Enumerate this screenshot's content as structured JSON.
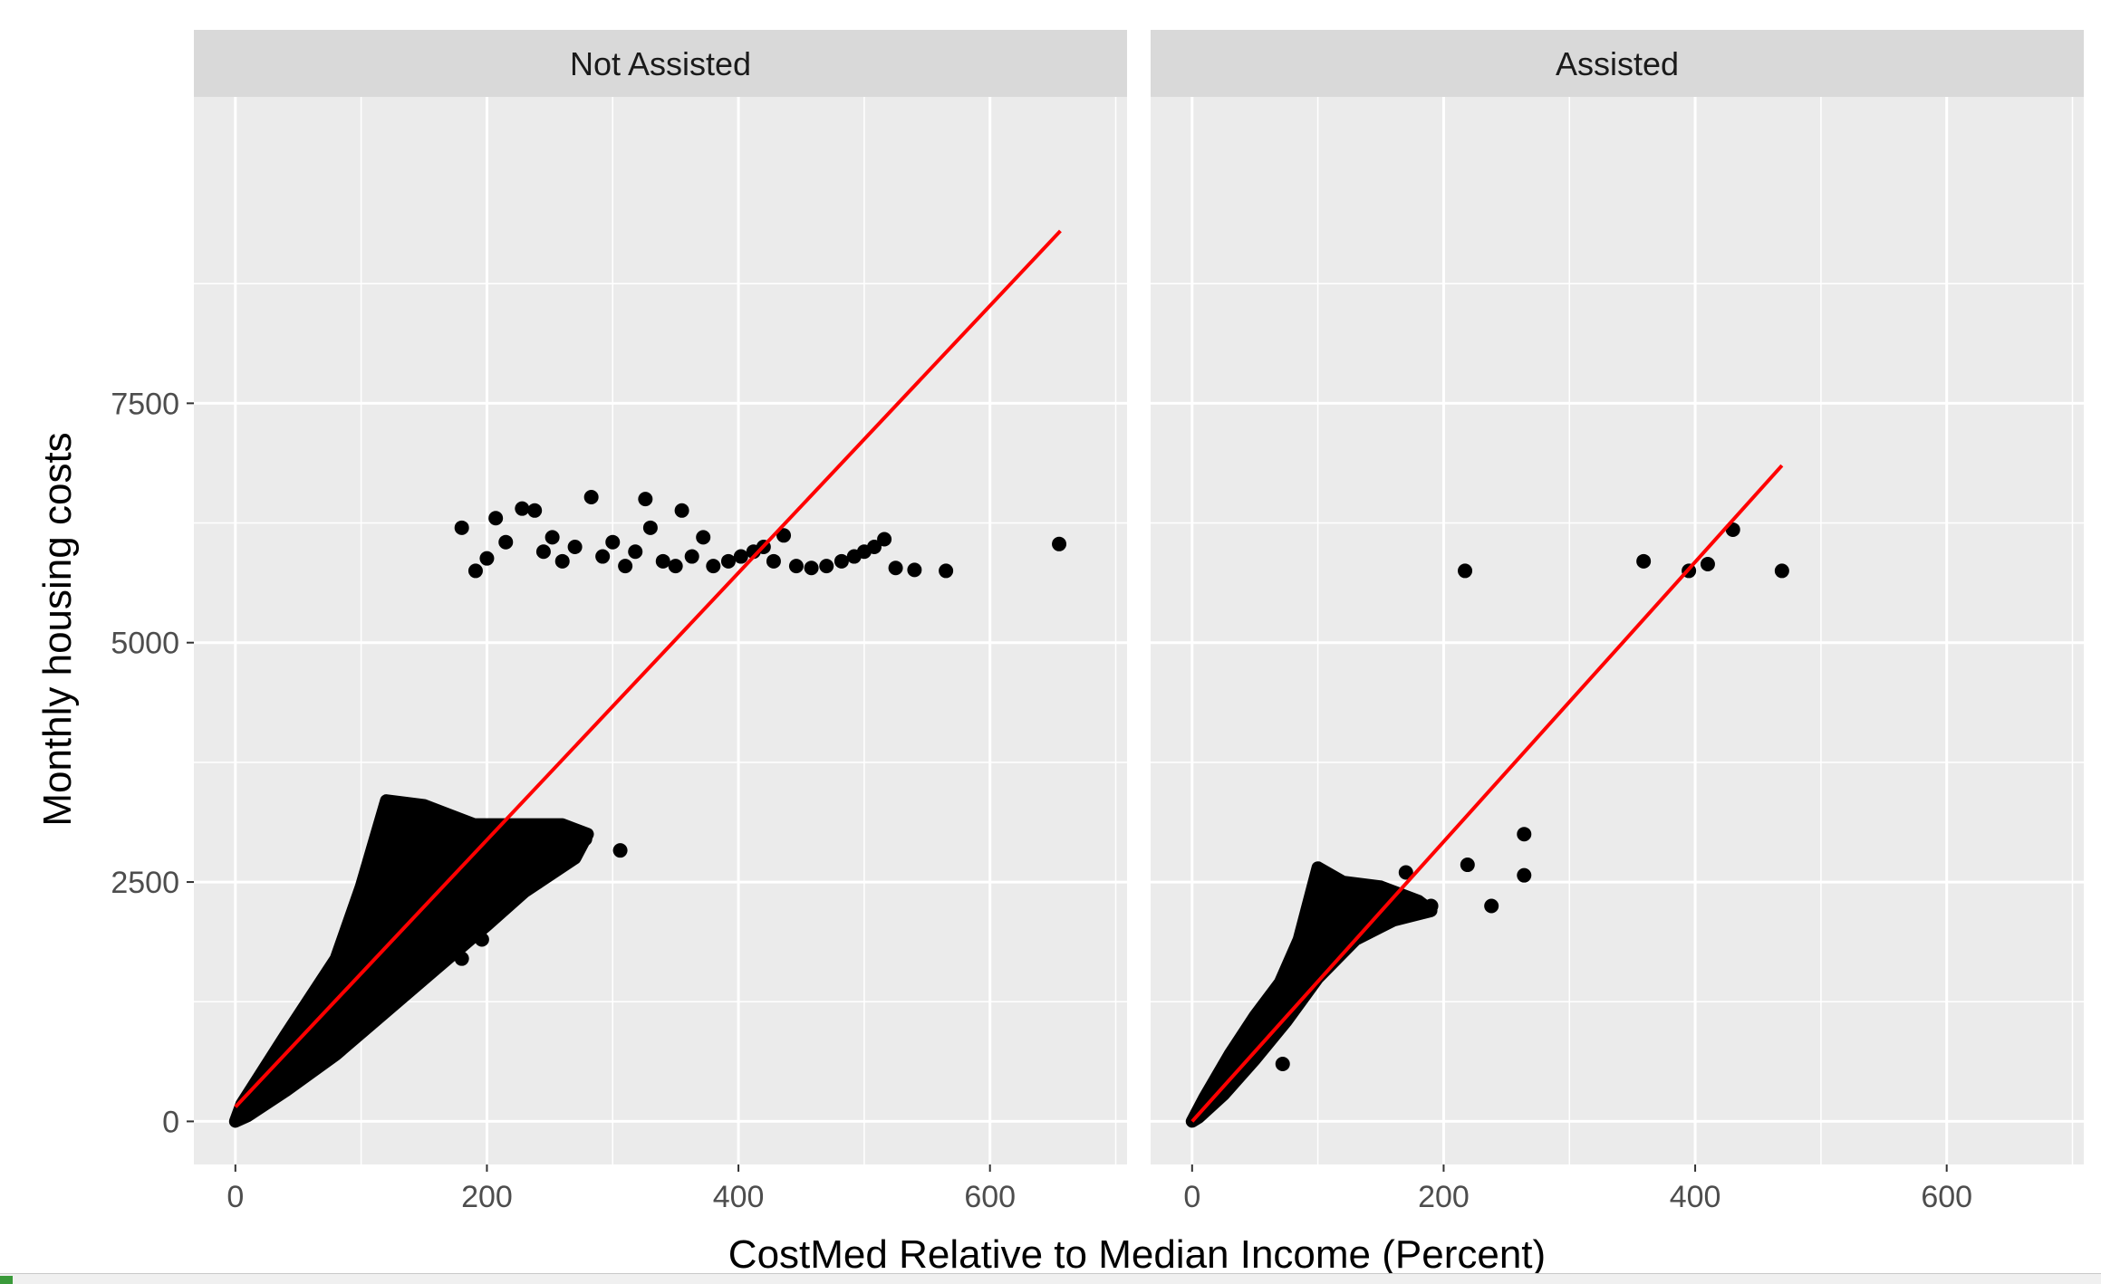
{
  "chart_data": {
    "type": "scatter",
    "xlabel": "CostMed Relative to Median Income (Percent)",
    "ylabel": "Monthly housing costs",
    "xlim": [
      -33,
      709
    ],
    "ylim": [
      -450,
      10700
    ],
    "x_ticks": [
      0,
      200,
      400,
      600
    ],
    "x_tick_labels": [
      "0",
      "200",
      "400",
      "600"
    ],
    "x_minor": [
      100,
      300,
      500,
      700
    ],
    "y_ticks": [
      0,
      2500,
      5000,
      7500
    ],
    "y_tick_labels": [
      "0",
      "2500",
      "5000",
      "7500"
    ],
    "y_minor": [
      1250,
      3750,
      6250,
      8750
    ],
    "grid": true,
    "colors": {
      "panel_bg": "#ebebeb",
      "strip_bg": "#d9d9d9",
      "grid": "#ffffff",
      "points": "#000000",
      "fit_line": "#ff0000"
    },
    "panels": [
      {
        "name": "Not Assisted",
        "fit_line": {
          "x": [
            0,
            656
          ],
          "y": [
            150,
            9300
          ]
        },
        "dense_cloud": [
          [
            0,
            0
          ],
          [
            5,
            180
          ],
          [
            40,
            900
          ],
          [
            80,
            1700
          ],
          [
            100,
            2450
          ],
          [
            120,
            3350
          ],
          [
            150,
            3300
          ],
          [
            190,
            3100
          ],
          [
            260,
            3100
          ],
          [
            280,
            3000
          ],
          [
            270,
            2750
          ],
          [
            230,
            2400
          ],
          [
            200,
            2050
          ],
          [
            160,
            1600
          ],
          [
            120,
            1150
          ],
          [
            80,
            700
          ],
          [
            40,
            320
          ],
          [
            10,
            60
          ]
        ],
        "points": [
          [
            306,
            2830
          ],
          [
            196,
            1900
          ],
          [
            180,
            1700
          ],
          [
            240,
            2500
          ],
          [
            260,
            2800
          ],
          [
            278,
            2950
          ],
          [
            180,
            6200
          ],
          [
            191,
            5750
          ],
          [
            200,
            5880
          ],
          [
            207,
            6300
          ],
          [
            215,
            6050
          ],
          [
            228,
            6400
          ],
          [
            238,
            6380
          ],
          [
            245,
            5950
          ],
          [
            252,
            6100
          ],
          [
            260,
            5850
          ],
          [
            270,
            6000
          ],
          [
            283,
            6520
          ],
          [
            292,
            5900
          ],
          [
            300,
            6050
          ],
          [
            310,
            5800
          ],
          [
            318,
            5950
          ],
          [
            326,
            6500
          ],
          [
            330,
            6200
          ],
          [
            340,
            5850
          ],
          [
            350,
            5800
          ],
          [
            355,
            6380
          ],
          [
            363,
            5900
          ],
          [
            372,
            6100
          ],
          [
            380,
            5800
          ],
          [
            392,
            5850
          ],
          [
            402,
            5900
          ],
          [
            412,
            5950
          ],
          [
            420,
            6000
          ],
          [
            428,
            5850
          ],
          [
            436,
            6120
          ],
          [
            446,
            5800
          ],
          [
            458,
            5780
          ],
          [
            470,
            5800
          ],
          [
            482,
            5850
          ],
          [
            492,
            5900
          ],
          [
            500,
            5950
          ],
          [
            508,
            6000
          ],
          [
            516,
            6080
          ],
          [
            525,
            5780
          ],
          [
            540,
            5760
          ],
          [
            565,
            5750
          ],
          [
            655,
            6030
          ]
        ]
      },
      {
        "name": "Assisted",
        "fit_line": {
          "x": [
            0,
            469
          ],
          "y": [
            0,
            6850
          ]
        },
        "dense_cloud": [
          [
            0,
            0
          ],
          [
            10,
            250
          ],
          [
            30,
            700
          ],
          [
            50,
            1100
          ],
          [
            70,
            1450
          ],
          [
            85,
            1900
          ],
          [
            100,
            2650
          ],
          [
            120,
            2500
          ],
          [
            150,
            2450
          ],
          [
            180,
            2300
          ],
          [
            190,
            2200
          ],
          [
            160,
            2100
          ],
          [
            130,
            1900
          ],
          [
            100,
            1500
          ],
          [
            75,
            1050
          ],
          [
            50,
            650
          ],
          [
            25,
            280
          ],
          [
            5,
            40
          ]
        ],
        "points": [
          [
            217,
            5750
          ],
          [
            359,
            5850
          ],
          [
            395,
            5750
          ],
          [
            410,
            5820
          ],
          [
            430,
            6180
          ],
          [
            469,
            5750
          ],
          [
            264,
            3000
          ],
          [
            264,
            2570
          ],
          [
            219,
            2680
          ],
          [
            238,
            2250
          ],
          [
            190,
            2250
          ],
          [
            170,
            2600
          ],
          [
            150,
            2200
          ],
          [
            72,
            600
          ]
        ]
      }
    ]
  }
}
